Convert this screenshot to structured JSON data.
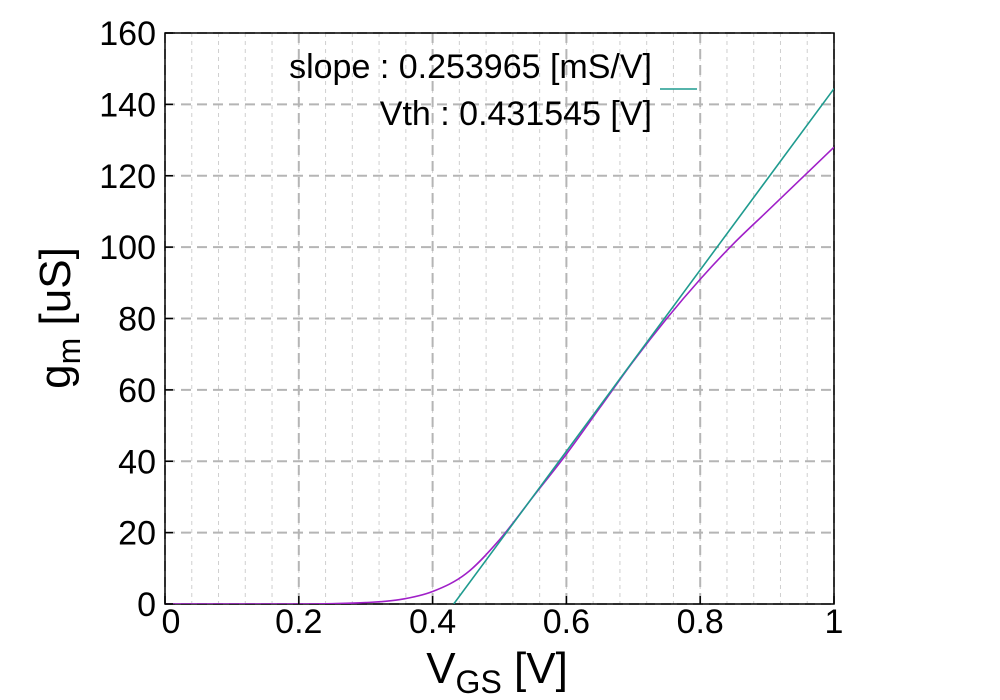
{
  "chart_data": {
    "type": "line",
    "xlabel": {
      "main": "V",
      "sub": "GS",
      "unit": " [V]"
    },
    "ylabel": {
      "main": "g",
      "sub": "m",
      "unit": " [uS]"
    },
    "xlim": [
      0,
      1
    ],
    "ylim": [
      0,
      160
    ],
    "xticks": [
      0,
      0.2,
      0.4,
      0.6,
      0.8,
      1
    ],
    "xtick_labels": [
      "0",
      "0.2",
      "0.4",
      "0.6",
      "0.8",
      "1"
    ],
    "yticks": [
      0,
      20,
      40,
      60,
      80,
      100,
      120,
      140,
      160
    ],
    "ytick_labels": [
      "0",
      "20",
      "40",
      "60",
      "80",
      "100",
      "120",
      "140",
      "160"
    ],
    "grid": true,
    "legend": {
      "placement": "top",
      "line1": "slope : 0.253965 [mS/V]",
      "line2": "Vth : 0.431545 [V]",
      "swatch_color": "#1f9b8f"
    },
    "series": [
      {
        "color": "#a020c8",
        "x": [
          0,
          0.1,
          0.2,
          0.25,
          0.3,
          0.35,
          0.4,
          0.45,
          0.5,
          0.55,
          0.6,
          0.65,
          0.7,
          0.75,
          0.8,
          0.85,
          0.9,
          0.95,
          1.0
        ],
        "y": [
          0,
          0,
          0,
          0.1,
          0.4,
          1.2,
          3.5,
          8.5,
          18,
          30,
          42,
          55,
          68,
          80,
          91,
          101,
          110,
          119,
          128
        ]
      },
      {
        "color": "#1f9b8f",
        "x": [
          0.431545,
          1.0
        ],
        "y": [
          0,
          144.4
        ]
      }
    ]
  }
}
